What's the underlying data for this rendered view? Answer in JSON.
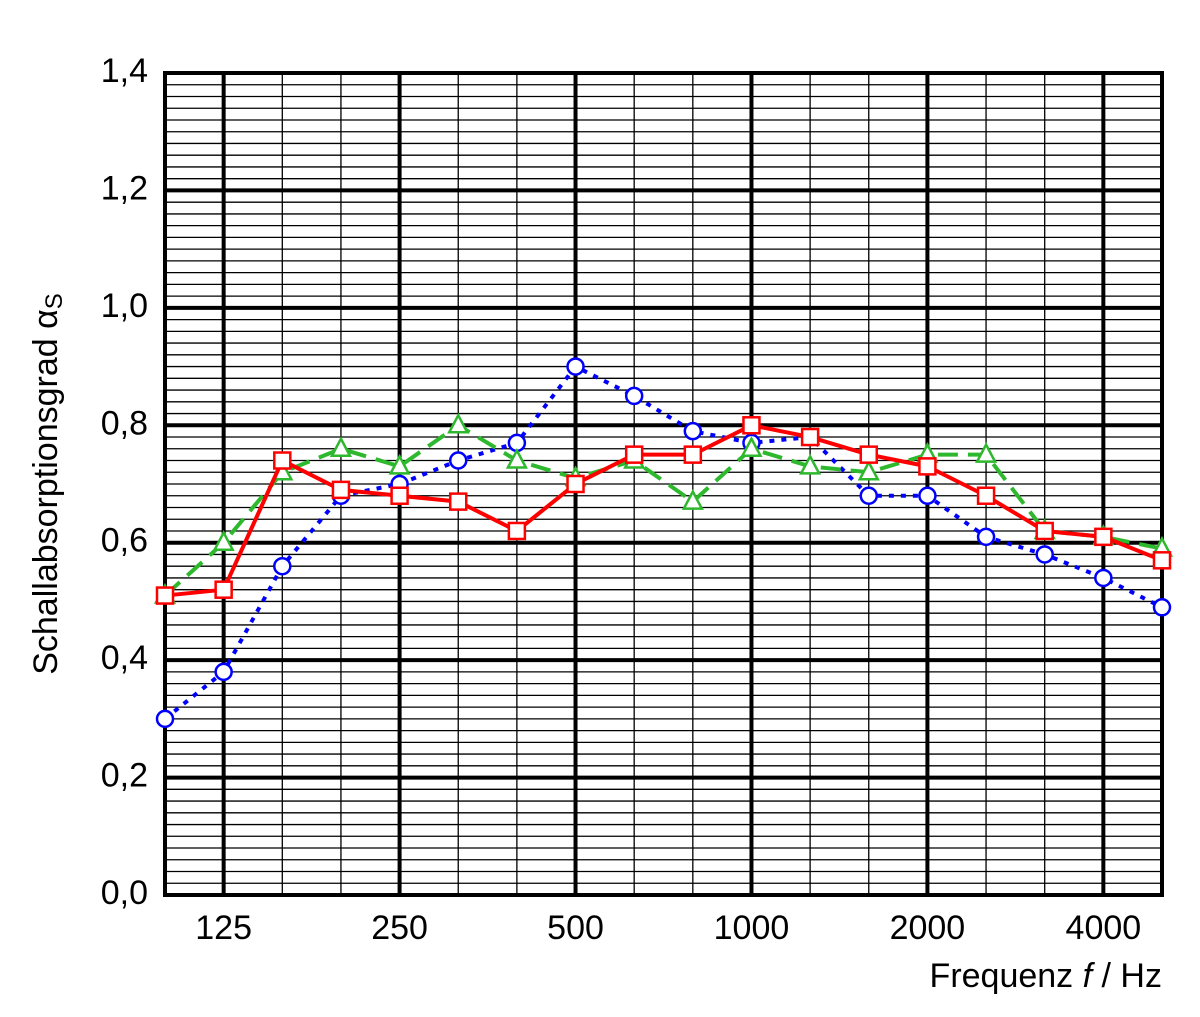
{
  "chart_data": {
    "type": "line",
    "ylabel": {
      "text": "Schallabsorptionsgrad α",
      "sub": "S"
    },
    "xlabel": {
      "text": "Frequenz ",
      "symbol": "f",
      "unit": " / Hz"
    },
    "categories": [
      null,
      "125",
      null,
      null,
      "250",
      null,
      null,
      "500",
      null,
      null,
      "1000",
      null,
      null,
      "2000",
      null,
      null,
      "4000",
      null
    ],
    "ylim": [
      0,
      1.4
    ],
    "yticks": [
      {
        "value": 0,
        "label": "0,0"
      },
      {
        "value": 0.2,
        "label": "0,2"
      },
      {
        "value": 0.4,
        "label": "0,4"
      },
      {
        "value": 0.6,
        "label": "0,6"
      },
      {
        "value": 0.8,
        "label": "0,8"
      },
      {
        "value": 1.0,
        "label": "1,0"
      },
      {
        "value": 1.2,
        "label": "1,2"
      },
      {
        "value": 1.4,
        "label": "1,4"
      }
    ],
    "grid": true,
    "series": [
      {
        "color": "#0000ff",
        "marker": "circle",
        "dash": "5,7",
        "values": [
          0.3,
          0.38,
          0.56,
          0.68,
          0.7,
          0.74,
          0.77,
          0.9,
          0.85,
          0.79,
          0.77,
          0.78,
          0.68,
          0.68,
          0.61,
          0.58,
          0.54,
          0.49
        ]
      },
      {
        "color": "#2eb82e",
        "marker": "triangle",
        "dash": "20,10",
        "values": [
          0.51,
          0.6,
          0.72,
          0.76,
          0.73,
          0.8,
          0.74,
          0.71,
          0.74,
          0.67,
          0.76,
          0.73,
          0.72,
          0.75,
          0.75,
          0.62,
          0.61,
          0.59
        ]
      },
      {
        "color": "#ff0000",
        "marker": "square",
        "dash": "none",
        "values": [
          0.51,
          0.52,
          0.74,
          0.69,
          0.68,
          0.67,
          0.62,
          0.7,
          0.75,
          0.75,
          0.8,
          0.78,
          0.75,
          0.73,
          0.68,
          0.62,
          0.61,
          0.57
        ]
      }
    ]
  }
}
